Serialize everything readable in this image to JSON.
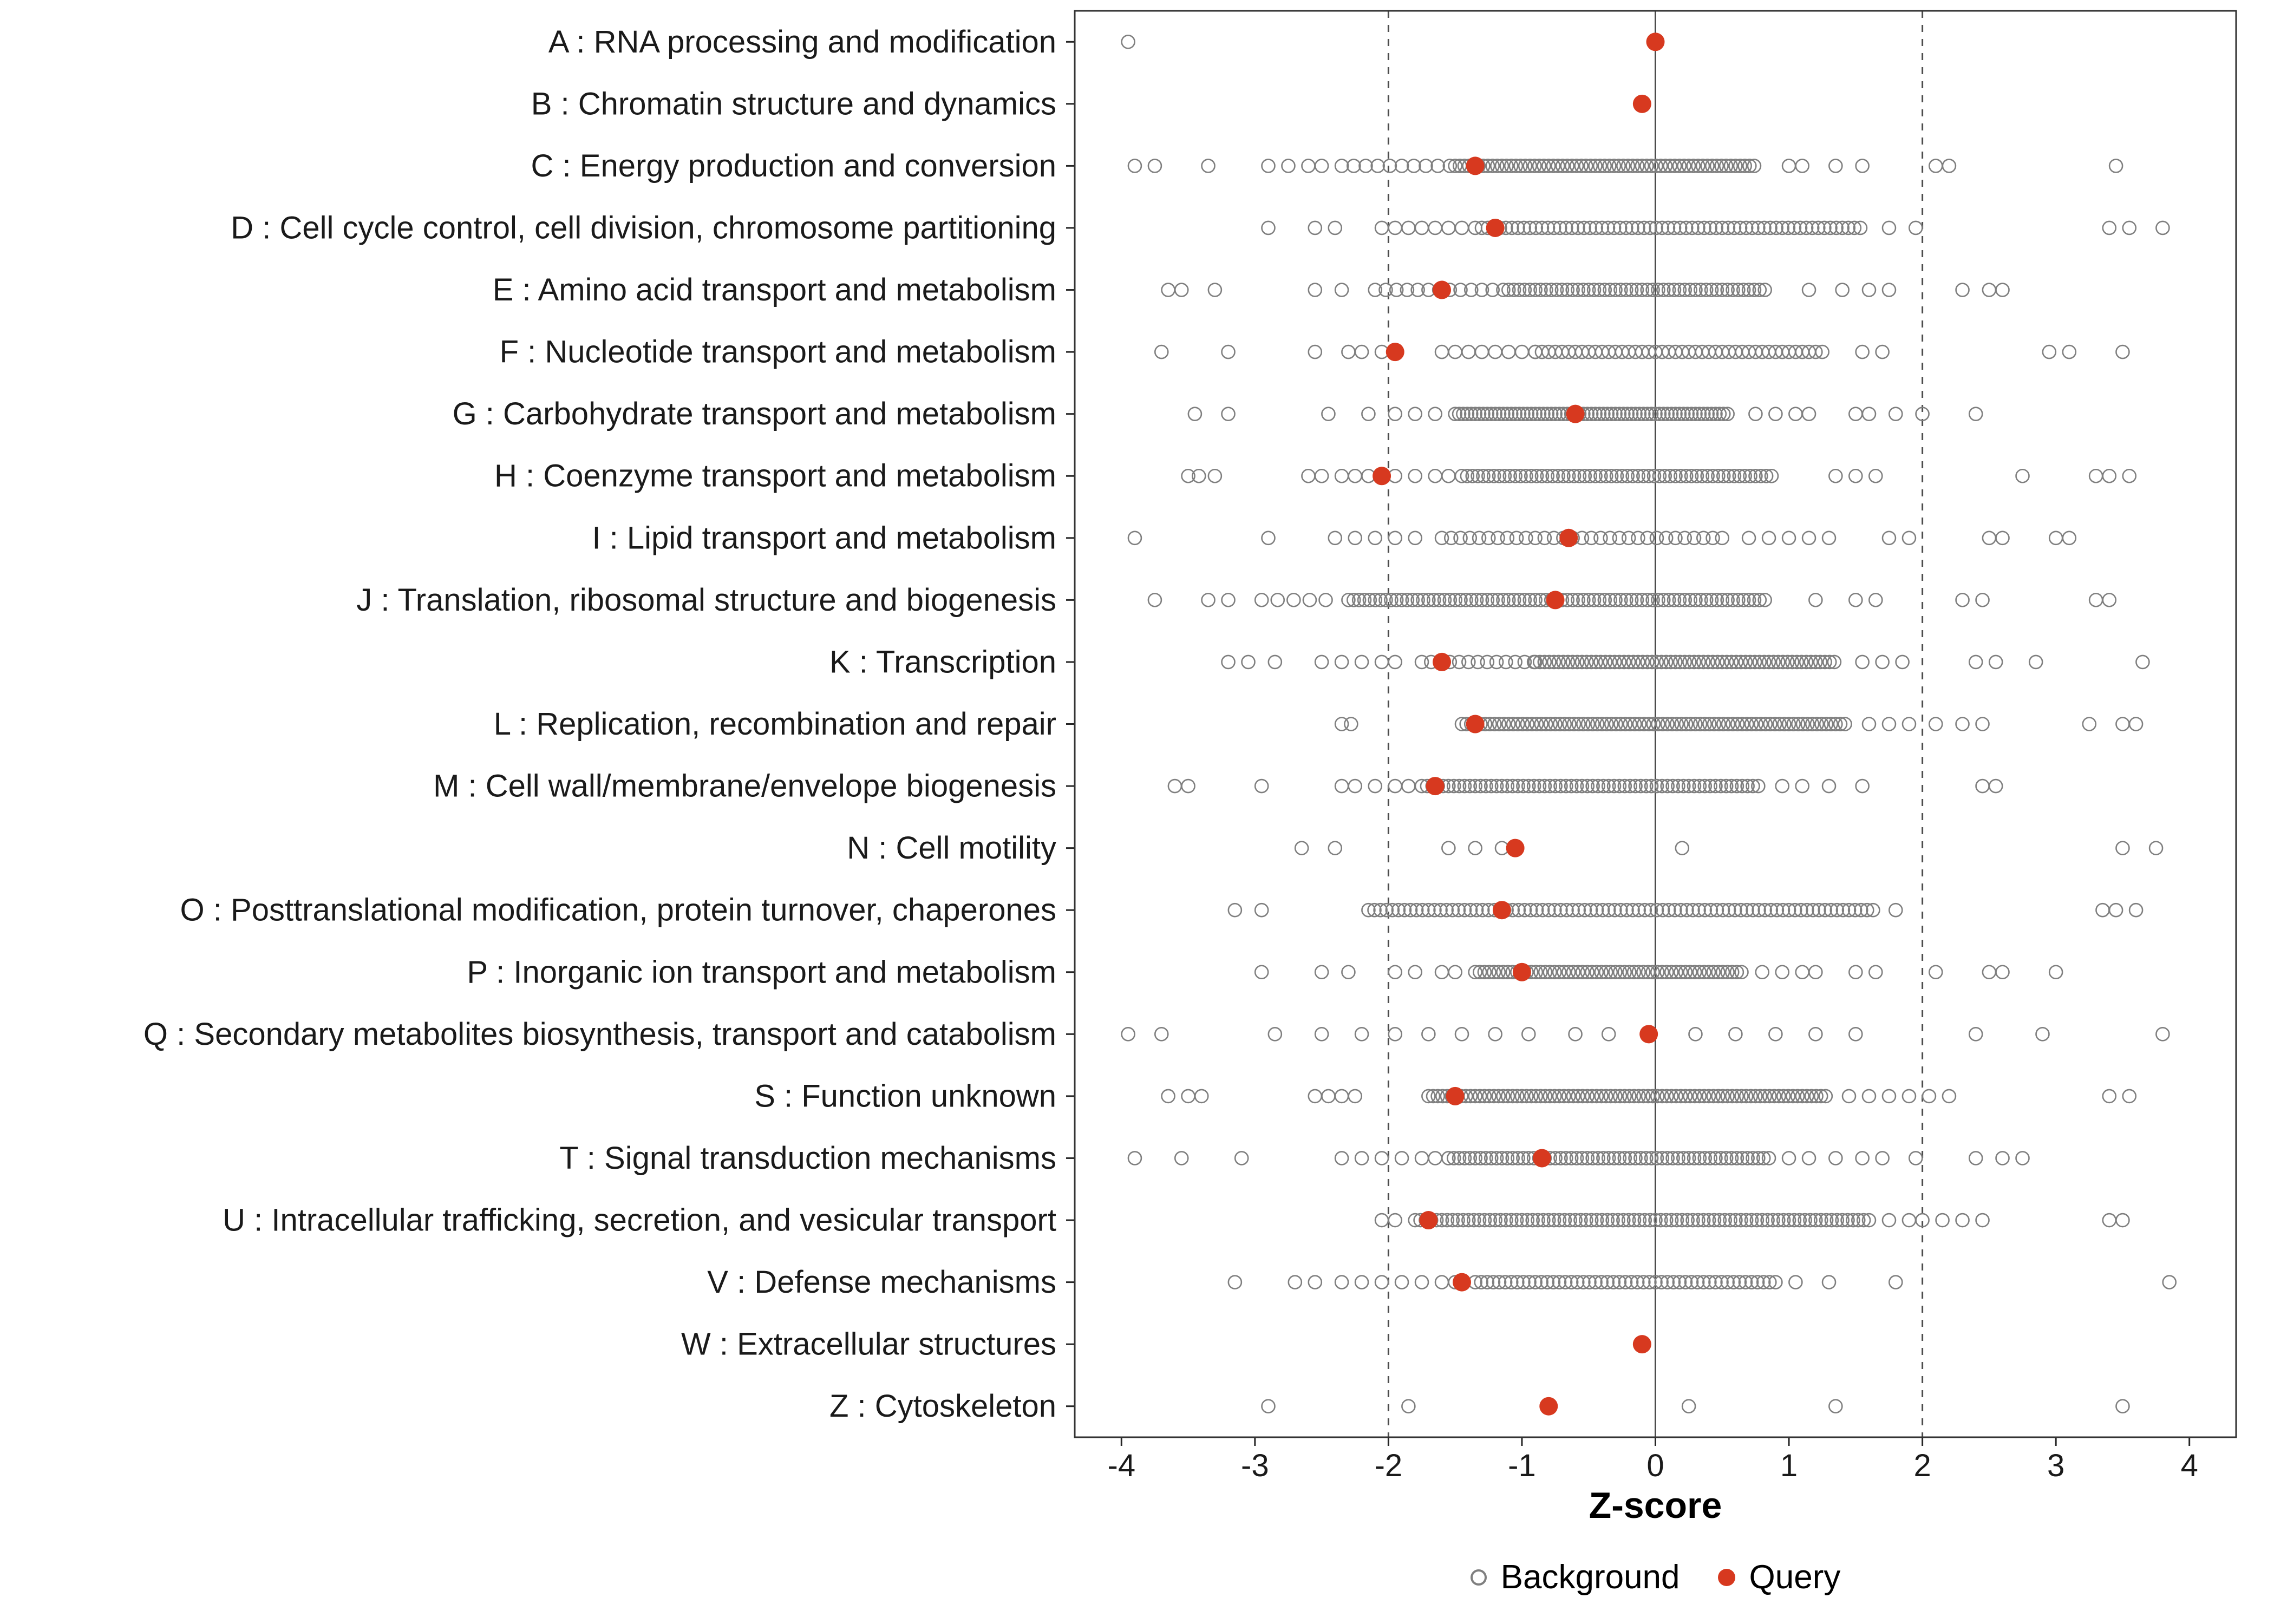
{
  "chart_data": {
    "type": "scatter",
    "xlabel": "Z-score",
    "xlim": [
      -4.35,
      4.35
    ],
    "x_ticks": [
      -4,
      -3,
      -2,
      -1,
      0,
      1,
      2,
      3,
      4
    ],
    "reference_lines": {
      "solid": [
        0
      ],
      "dashed": [
        -2,
        2
      ]
    },
    "legend": [
      {
        "label": "Background",
        "type": "open"
      },
      {
        "label": "Query",
        "type": "filled"
      }
    ],
    "colors": {
      "background_stroke": "#7f7f7f",
      "query_fill": "#d7391f",
      "axis_text": "#1a1a1a",
      "panel_border": "#333333",
      "ref_line": "#4d4d4d"
    },
    "categories": [
      {
        "label": "A : RNA processing and modification",
        "query": 0.0,
        "background_bands": [],
        "background_points": [
          -3.95
        ]
      },
      {
        "label": "B : Chromatin structure and dynamics",
        "query": -0.1,
        "background_bands": [],
        "background_points": []
      },
      {
        "label": "C : Energy production and conversion",
        "query": -1.35,
        "background_bands": [
          [
            -2.35,
            -1.5,
            0.09
          ],
          [
            -1.5,
            0.75,
            0.035
          ]
        ],
        "background_points": [
          -3.9,
          -3.75,
          -3.35,
          -2.9,
          -2.75,
          -2.6,
          -2.5,
          1.0,
          1.1,
          1.35,
          1.55,
          2.1,
          2.2,
          3.45
        ]
      },
      {
        "label": "D : Cell cycle control, cell division, chromosome partitioning",
        "query": -1.2,
        "background_bands": [
          [
            -2.05,
            -1.3,
            0.1
          ],
          [
            -1.3,
            1.55,
            0.045
          ]
        ],
        "background_points": [
          -2.9,
          -2.55,
          -2.4,
          1.75,
          1.95,
          3.4,
          3.55,
          3.8
        ]
      },
      {
        "label": "E : Amino acid transport and metabolism",
        "query": -1.6,
        "background_bands": [
          [
            -2.1,
            -1.1,
            0.08
          ],
          [
            -1.1,
            0.85,
            0.04
          ]
        ],
        "background_points": [
          -3.65,
          -3.55,
          -3.3,
          -2.55,
          -2.35,
          1.15,
          1.4,
          1.6,
          1.75,
          2.3,
          2.5,
          2.6
        ]
      },
      {
        "label": "F : Nucleotide transport and metabolism",
        "query": -1.95,
        "background_bands": [
          [
            -1.6,
            -0.9,
            0.1
          ],
          [
            -0.9,
            1.25,
            0.05
          ]
        ],
        "background_points": [
          -3.7,
          -3.2,
          -2.55,
          -2.3,
          -2.2,
          -2.05,
          1.55,
          1.7,
          2.95,
          3.1,
          3.5
        ]
      },
      {
        "label": "G : Carbohydrate transport and metabolism",
        "query": -0.6,
        "background_bands": [
          [
            -1.5,
            0.55,
            0.03
          ]
        ],
        "background_points": [
          -3.45,
          -3.2,
          -2.45,
          -2.15,
          -1.95,
          -1.8,
          -1.65,
          0.75,
          0.9,
          1.05,
          1.15,
          1.5,
          1.6,
          1.8,
          2.0,
          2.4
        ]
      },
      {
        "label": "H : Coenzyme transport and metabolism",
        "query": -2.05,
        "background_bands": [
          [
            -1.45,
            0.9,
            0.04
          ]
        ],
        "background_points": [
          -3.5,
          -3.42,
          -3.3,
          -2.6,
          -2.5,
          -2.35,
          -2.25,
          -2.15,
          -1.95,
          -1.8,
          -1.65,
          -1.55,
          1.35,
          1.5,
          1.65,
          2.75,
          3.3,
          3.4,
          3.55
        ]
      },
      {
        "label": "I : Lipid transport and metabolism",
        "query": -0.65,
        "background_bands": [
          [
            -1.6,
            0.5,
            0.07
          ]
        ],
        "background_points": [
          -3.9,
          -2.9,
          -2.4,
          -2.25,
          -2.1,
          -1.95,
          -1.8,
          0.7,
          0.85,
          1.0,
          1.15,
          1.3,
          1.75,
          1.9,
          2.5,
          2.6,
          3.0,
          3.1
        ]
      },
      {
        "label": "J : Translation, ribosomal structure and biogenesis",
        "query": -0.75,
        "background_bands": [
          [
            -2.95,
            -2.4,
            0.12
          ],
          [
            -2.3,
            0.85,
            0.04
          ]
        ],
        "background_points": [
          -3.75,
          -3.35,
          -3.2,
          1.2,
          1.5,
          1.65,
          2.3,
          2.45,
          3.3,
          3.4
        ]
      },
      {
        "label": "K : Transcription",
        "query": -1.6,
        "background_bands": [
          [
            -1.75,
            -0.9,
            0.07
          ],
          [
            -0.9,
            1.35,
            0.035
          ]
        ],
        "background_points": [
          -3.2,
          -3.05,
          -2.85,
          -2.5,
          -2.35,
          -2.2,
          -2.05,
          -1.95,
          1.55,
          1.7,
          1.85,
          2.4,
          2.55,
          2.85,
          3.65
        ]
      },
      {
        "label": "L : Replication, recombination and repair",
        "query": -1.35,
        "background_bands": [
          [
            -1.45,
            1.45,
            0.035
          ]
        ],
        "background_points": [
          -2.35,
          -2.28,
          1.6,
          1.75,
          1.9,
          2.1,
          2.3,
          2.45,
          3.25,
          3.5,
          3.6
        ]
      },
      {
        "label": "M : Cell wall/membrane/envelope biogenesis",
        "query": -1.65,
        "background_bands": [
          [
            -1.75,
            0.8,
            0.04
          ]
        ],
        "background_points": [
          -3.6,
          -3.5,
          -2.95,
          -2.35,
          -2.25,
          -2.1,
          -1.95,
          -1.85,
          0.95,
          1.1,
          1.3,
          1.55,
          2.45,
          2.55
        ]
      },
      {
        "label": "N : Cell motility",
        "query": -1.05,
        "background_bands": [],
        "background_points": [
          -2.65,
          -2.4,
          -1.55,
          -1.35,
          -1.15,
          0.2,
          3.5,
          3.75
        ]
      },
      {
        "label": "O : Posttranslational modification, protein turnover, chaperones",
        "query": -1.15,
        "background_bands": [
          [
            -2.15,
            1.65,
            0.045
          ]
        ],
        "background_points": [
          -3.15,
          -2.95,
          1.8,
          3.35,
          3.45,
          3.6
        ]
      },
      {
        "label": "P : Inorganic ion transport and metabolism",
        "query": -1.0,
        "background_bands": [
          [
            -1.35,
            0.65,
            0.035
          ]
        ],
        "background_points": [
          -2.95,
          -2.5,
          -2.3,
          -1.95,
          -1.8,
          -1.6,
          -1.5,
          0.8,
          0.95,
          1.1,
          1.2,
          1.5,
          1.65,
          2.1,
          2.5,
          2.6,
          3.0
        ]
      },
      {
        "label": "Q : Secondary metabolites biosynthesis, transport and catabolism",
        "query": -0.05,
        "background_bands": [],
        "background_points": [
          -3.95,
          -3.7,
          -2.85,
          -2.5,
          -2.2,
          -1.95,
          -1.7,
          -1.45,
          -1.2,
          -0.95,
          -0.6,
          -0.35,
          0.3,
          0.6,
          0.9,
          1.2,
          1.5,
          2.4,
          2.9,
          3.8
        ]
      },
      {
        "label": "S : Function unknown",
        "query": -1.5,
        "background_bands": [
          [
            -1.7,
            1.3,
            0.035
          ]
        ],
        "background_points": [
          -3.65,
          -3.5,
          -3.4,
          -2.55,
          -2.45,
          -2.35,
          -2.25,
          1.45,
          1.6,
          1.75,
          1.9,
          2.05,
          2.2,
          3.4,
          3.55
        ]
      },
      {
        "label": "T : Signal transduction mechanisms",
        "query": -0.85,
        "background_bands": [
          [
            -1.55,
            0.85,
            0.04
          ]
        ],
        "background_points": [
          -3.9,
          -3.55,
          -3.1,
          -2.35,
          -2.2,
          -2.05,
          -1.9,
          -1.75,
          -1.65,
          1.0,
          1.15,
          1.35,
          1.55,
          1.7,
          1.95,
          2.4,
          2.6,
          2.75
        ]
      },
      {
        "label": "U : Intracellular trafficking, secretion, and vesicular transport",
        "query": -1.7,
        "background_bands": [
          [
            -1.8,
            1.6,
            0.04
          ]
        ],
        "background_points": [
          -2.05,
          -1.95,
          1.75,
          1.9,
          2.0,
          2.15,
          2.3,
          2.45,
          3.4,
          3.5
        ]
      },
      {
        "label": "V : Defense mechanisms",
        "query": -1.45,
        "background_bands": [
          [
            -1.35,
            0.9,
            0.045
          ]
        ],
        "background_points": [
          -3.15,
          -2.7,
          -2.55,
          -2.35,
          -2.2,
          -2.05,
          -1.9,
          -1.75,
          -1.6,
          -1.5,
          1.05,
          1.3,
          1.8,
          3.85
        ]
      },
      {
        "label": "W : Extracellular structures",
        "query": -0.1,
        "background_bands": [],
        "background_points": []
      },
      {
        "label": "Z : Cytoskeleton",
        "query": -0.8,
        "background_bands": [],
        "background_points": [
          -2.9,
          -1.85,
          0.25,
          1.35,
          3.5
        ]
      }
    ]
  }
}
